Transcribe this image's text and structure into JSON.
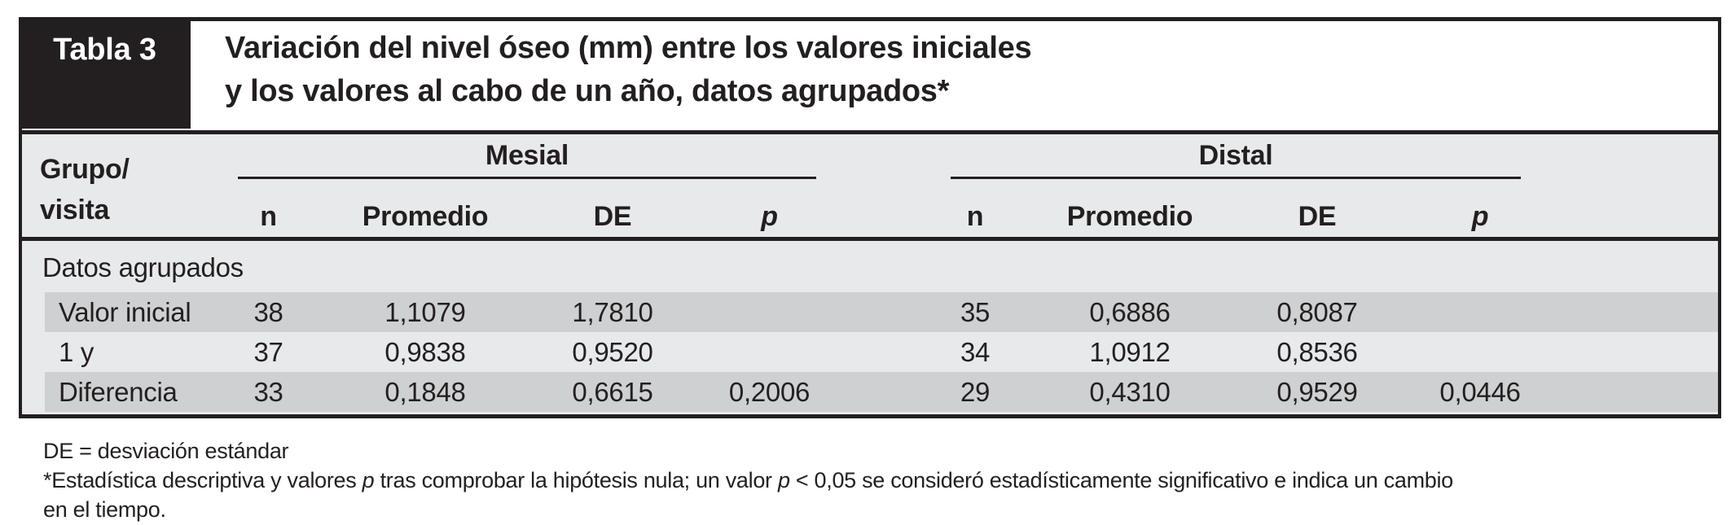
{
  "table_tag": "Tabla 3",
  "title": {
    "line1": "Variación del nivel óseo (mm) entre los valores iniciales",
    "line2": "y los valores al cabo de un año, datos agrupados*"
  },
  "header": {
    "row_label_line1": "Grupo/",
    "row_label_line2": "visita",
    "group_mesial": "Mesial",
    "group_distal": "Distal",
    "sub": [
      "n",
      "Promedio",
      "DE",
      "p"
    ]
  },
  "section_label": "Datos agrupados",
  "rows": [
    {
      "label": "Valor inicial",
      "m_n": "38",
      "m_prom": "1,1079",
      "m_de": "1,7810",
      "m_p": "",
      "d_n": "35",
      "d_prom": "0,6886",
      "d_de": "0,8087",
      "d_p": ""
    },
    {
      "label": "1 y",
      "m_n": "37",
      "m_prom": "0,9838",
      "m_de": "0,9520",
      "m_p": "",
      "d_n": "34",
      "d_prom": "1,0912",
      "d_de": "0,8536",
      "d_p": ""
    },
    {
      "label": "Diferencia",
      "m_n": "33",
      "m_prom": "0,1848",
      "m_de": "0,6615",
      "m_p": "0,2006",
      "d_n": "29",
      "d_prom": "0,4310",
      "d_de": "0,9529",
      "d_p": "0,0446"
    }
  ],
  "footnotes": {
    "line1": "DE = desviación estándar",
    "seg1": "*Estadística descriptiva y valores ",
    "p1": "p",
    "seg2": " tras comprobar la hipótesis nula; un valor ",
    "p2": "p",
    "seg3": " < 0,05 se consideró estadísticamente significativo e indica un cambio",
    "last_line": "en el tiempo."
  },
  "colors": {
    "black": "#231f20",
    "panel_gray": "#e8e9ea",
    "band_gray": "#ced0d1",
    "white": "#ffffff"
  }
}
